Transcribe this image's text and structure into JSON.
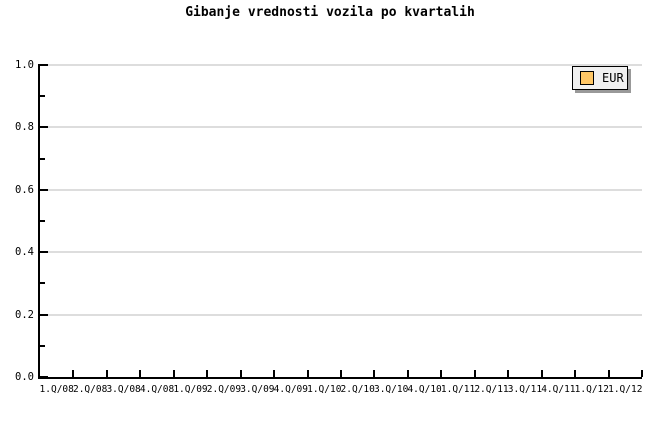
{
  "chart_data": {
    "type": "bar",
    "title": "Gibanje vrednosti vozila po kvartalih",
    "categories": [
      "1.Q/08",
      "2.Q/08",
      "3.Q/08",
      "4.Q/08",
      "1.Q/09",
      "2.Q/09",
      "3.Q/09",
      "4.Q/09",
      "1.Q/10",
      "2.Q/10",
      "3.Q/10",
      "4.Q/10",
      "1.Q/11",
      "2.Q/11",
      "3.Q/11",
      "4.Q/11",
      "1.Q/12",
      "1.Q/12"
    ],
    "series": [
      {
        "name": "EUR",
        "color": "#FFC766",
        "values": []
      }
    ],
    "xlabel": "",
    "ylabel": "",
    "ylim": [
      0.0,
      1.0
    ],
    "ytick_labels": [
      "0.0",
      "0.2",
      "0.4",
      "0.6",
      "0.8",
      "1.0"
    ],
    "ytick_interval": 0.2,
    "ytick_minor_interval": 0.1,
    "grid": "horizontal-only",
    "legend_position": "top-right"
  },
  "legend": {
    "label": "EUR",
    "swatch_color": "#FFC766"
  },
  "colors": {
    "background": "#FFFFFF",
    "axis": "#000000",
    "gridline": "#DDDDDD",
    "text": "#000000",
    "legend_background": "#F0F0F0",
    "legend_border": "#000000",
    "legend_shadow": "#999999"
  }
}
